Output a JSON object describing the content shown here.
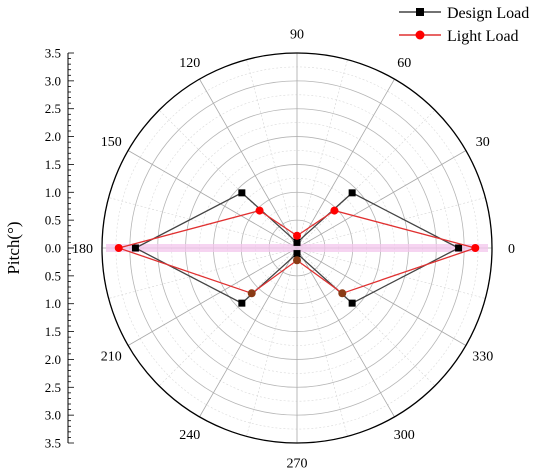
{
  "chart_data": {
    "type": "polar-line",
    "radial_axis": {
      "label": "Pitch(°)",
      "range": [
        0,
        3.5
      ],
      "ticks": [
        "0.0",
        "0.5",
        "1.0",
        "1.5",
        "2.0",
        "2.5",
        "3.0",
        "3.5"
      ]
    },
    "angular_axis": {
      "unit": "degrees",
      "ticks": [
        0,
        30,
        60,
        90,
        120,
        150,
        180,
        210,
        240,
        270,
        300,
        330
      ]
    },
    "grid": true,
    "legend": {
      "position": "top-right"
    },
    "series": [
      {
        "name": "Design Load",
        "color": "#000000",
        "line_color": "#444444",
        "marker": "square",
        "theta": [
          0,
          45,
          90,
          135,
          180,
          225,
          270,
          315,
          360
        ],
        "r": [
          2.9,
          1.4,
          0.1,
          1.4,
          2.9,
          1.4,
          0.1,
          1.4,
          2.9
        ]
      },
      {
        "name": "Light Load",
        "color": "#ff0000",
        "line_color": "#e03030",
        "marker": "circle",
        "theta": [
          0,
          45,
          90,
          135,
          180,
          225,
          270,
          315,
          360
        ],
        "r": [
          3.2,
          0.95,
          0.22,
          0.95,
          3.2,
          1.15,
          0.22,
          1.15,
          3.2
        ]
      }
    ],
    "highlight_color": "#f3c6ec"
  }
}
